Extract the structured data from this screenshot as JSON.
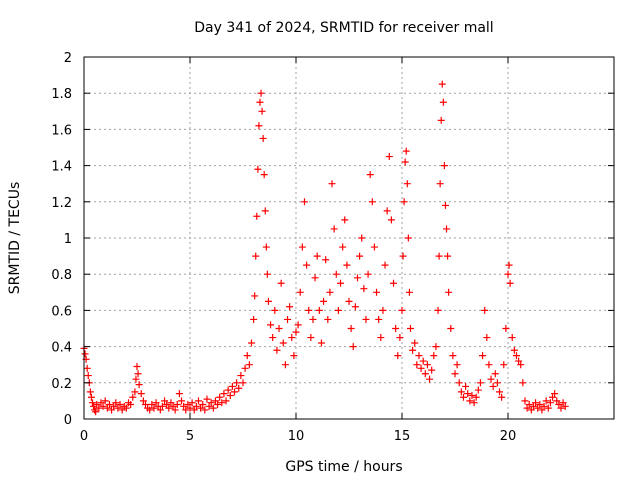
{
  "chart_data": {
    "type": "scatter",
    "title": "Day 341 of 2024, SRMTID for receiver mall",
    "xlabel": "GPS time / hours",
    "ylabel": "SRMTID / TECUs",
    "xlim": [
      0,
      25
    ],
    "ylim": [
      0,
      2
    ],
    "x_ticks": [
      0,
      5,
      10,
      15,
      20
    ],
    "x_tick_labels": [
      "0",
      "5",
      "10",
      "15",
      "20"
    ],
    "y_ticks": [
      0,
      0.2,
      0.4,
      0.6,
      0.8,
      1,
      1.2,
      1.4,
      1.6,
      1.8,
      2
    ],
    "y_tick_labels": [
      "0",
      "0.2",
      "0.4",
      "0.6",
      "0.8",
      "1",
      "1.2",
      "1.4",
      "1.6",
      "1.8",
      "2"
    ],
    "grid": true,
    "marker": "+",
    "series": [
      {
        "name": "SRMTID",
        "color": "#ff0000",
        "points": [
          [
            0.0,
            0.39
          ],
          [
            0.05,
            0.36
          ],
          [
            0.1,
            0.33
          ],
          [
            0.15,
            0.28
          ],
          [
            0.2,
            0.24
          ],
          [
            0.25,
            0.2
          ],
          [
            0.3,
            0.15
          ],
          [
            0.35,
            0.12
          ],
          [
            0.4,
            0.09
          ],
          [
            0.45,
            0.07
          ],
          [
            0.5,
            0.05
          ],
          [
            0.55,
            0.04
          ],
          [
            0.6,
            0.08
          ],
          [
            0.7,
            0.06
          ],
          [
            0.8,
            0.09
          ],
          [
            0.9,
            0.07
          ],
          [
            1.0,
            0.1
          ],
          [
            1.1,
            0.06
          ],
          [
            1.2,
            0.08
          ],
          [
            1.3,
            0.05
          ],
          [
            1.4,
            0.07
          ],
          [
            1.5,
            0.09
          ],
          [
            1.6,
            0.06
          ],
          [
            1.7,
            0.08
          ],
          [
            1.8,
            0.05
          ],
          [
            1.9,
            0.07
          ],
          [
            2.0,
            0.06
          ],
          [
            2.1,
            0.09
          ],
          [
            2.2,
            0.08
          ],
          [
            2.3,
            0.12
          ],
          [
            2.4,
            0.15
          ],
          [
            2.45,
            0.22
          ],
          [
            2.5,
            0.29
          ],
          [
            2.55,
            0.25
          ],
          [
            2.6,
            0.19
          ],
          [
            2.7,
            0.14
          ],
          [
            2.8,
            0.1
          ],
          [
            2.9,
            0.08
          ],
          [
            3.0,
            0.06
          ],
          [
            3.1,
            0.05
          ],
          [
            3.2,
            0.08
          ],
          [
            3.3,
            0.06
          ],
          [
            3.4,
            0.09
          ],
          [
            3.5,
            0.07
          ],
          [
            3.6,
            0.05
          ],
          [
            3.7,
            0.07
          ],
          [
            3.8,
            0.1
          ],
          [
            3.9,
            0.08
          ],
          [
            4.0,
            0.06
          ],
          [
            4.1,
            0.09
          ],
          [
            4.2,
            0.07
          ],
          [
            4.3,
            0.05
          ],
          [
            4.4,
            0.08
          ],
          [
            4.5,
            0.14
          ],
          [
            4.6,
            0.1
          ],
          [
            4.7,
            0.07
          ],
          [
            4.8,
            0.05
          ],
          [
            4.9,
            0.08
          ],
          [
            5.0,
            0.06
          ],
          [
            5.1,
            0.09
          ],
          [
            5.2,
            0.05
          ],
          [
            5.3,
            0.07
          ],
          [
            5.4,
            0.1
          ],
          [
            5.5,
            0.06
          ],
          [
            5.6,
            0.08
          ],
          [
            5.7,
            0.05
          ],
          [
            5.8,
            0.11
          ],
          [
            5.9,
            0.07
          ],
          [
            6.0,
            0.09
          ],
          [
            6.1,
            0.06
          ],
          [
            6.2,
            0.1
          ],
          [
            6.3,
            0.08
          ],
          [
            6.4,
            0.12
          ],
          [
            6.5,
            0.09
          ],
          [
            6.6,
            0.14
          ],
          [
            6.7,
            0.1
          ],
          [
            6.8,
            0.16
          ],
          [
            6.9,
            0.13
          ],
          [
            7.0,
            0.18
          ],
          [
            7.1,
            0.15
          ],
          [
            7.2,
            0.2
          ],
          [
            7.3,
            0.17
          ],
          [
            7.4,
            0.24
          ],
          [
            7.5,
            0.2
          ],
          [
            7.6,
            0.28
          ],
          [
            7.7,
            0.35
          ],
          [
            7.8,
            0.3
          ],
          [
            7.9,
            0.42
          ],
          [
            8.0,
            0.55
          ],
          [
            8.05,
            0.68
          ],
          [
            8.1,
            0.9
          ],
          [
            8.15,
            1.12
          ],
          [
            8.2,
            1.38
          ],
          [
            8.25,
            1.62
          ],
          [
            8.3,
            1.75
          ],
          [
            8.35,
            1.8
          ],
          [
            8.4,
            1.7
          ],
          [
            8.45,
            1.55
          ],
          [
            8.5,
            1.35
          ],
          [
            8.55,
            1.15
          ],
          [
            8.6,
            0.95
          ],
          [
            8.65,
            0.8
          ],
          [
            8.7,
            0.65
          ],
          [
            8.8,
            0.52
          ],
          [
            8.9,
            0.45
          ],
          [
            9.0,
            0.6
          ],
          [
            9.1,
            0.38
          ],
          [
            9.2,
            0.5
          ],
          [
            9.3,
            0.75
          ],
          [
            9.4,
            0.42
          ],
          [
            9.5,
            0.3
          ],
          [
            9.6,
            0.55
          ],
          [
            9.7,
            0.62
          ],
          [
            9.8,
            0.45
          ],
          [
            9.9,
            0.35
          ],
          [
            10.0,
            0.48
          ],
          [
            10.1,
            0.52
          ],
          [
            10.2,
            0.7
          ],
          [
            10.3,
            0.95
          ],
          [
            10.4,
            1.2
          ],
          [
            10.5,
            0.85
          ],
          [
            10.6,
            0.6
          ],
          [
            10.7,
            0.45
          ],
          [
            10.8,
            0.55
          ],
          [
            10.9,
            0.78
          ],
          [
            11.0,
            0.9
          ],
          [
            11.1,
            0.6
          ],
          [
            11.2,
            0.42
          ],
          [
            11.3,
            0.65
          ],
          [
            11.4,
            0.88
          ],
          [
            11.5,
            0.55
          ],
          [
            11.6,
            0.7
          ],
          [
            11.7,
            1.3
          ],
          [
            11.8,
            1.05
          ],
          [
            11.9,
            0.8
          ],
          [
            12.0,
            0.6
          ],
          [
            12.1,
            0.75
          ],
          [
            12.2,
            0.95
          ],
          [
            12.3,
            1.1
          ],
          [
            12.4,
            0.85
          ],
          [
            12.5,
            0.65
          ],
          [
            12.6,
            0.5
          ],
          [
            12.7,
            0.4
          ],
          [
            12.8,
            0.62
          ],
          [
            12.9,
            0.78
          ],
          [
            13.0,
            0.9
          ],
          [
            13.1,
            1.0
          ],
          [
            13.2,
            0.72
          ],
          [
            13.3,
            0.55
          ],
          [
            13.4,
            0.8
          ],
          [
            13.5,
            1.35
          ],
          [
            13.6,
            1.2
          ],
          [
            13.7,
            0.95
          ],
          [
            13.8,
            0.7
          ],
          [
            13.9,
            0.55
          ],
          [
            14.0,
            0.45
          ],
          [
            14.1,
            0.6
          ],
          [
            14.2,
            0.85
          ],
          [
            14.3,
            1.15
          ],
          [
            14.4,
            1.45
          ],
          [
            14.5,
            1.1
          ],
          [
            14.6,
            0.75
          ],
          [
            14.7,
            0.5
          ],
          [
            14.8,
            0.35
          ],
          [
            14.9,
            0.45
          ],
          [
            15.0,
            0.6
          ],
          [
            15.05,
            0.9
          ],
          [
            15.1,
            1.2
          ],
          [
            15.15,
            1.42
          ],
          [
            15.2,
            1.48
          ],
          [
            15.25,
            1.3
          ],
          [
            15.3,
            1.0
          ],
          [
            15.35,
            0.7
          ],
          [
            15.4,
            0.5
          ],
          [
            15.5,
            0.38
          ],
          [
            15.6,
            0.42
          ],
          [
            15.7,
            0.3
          ],
          [
            15.8,
            0.35
          ],
          [
            15.9,
            0.28
          ],
          [
            16.0,
            0.32
          ],
          [
            16.1,
            0.25
          ],
          [
            16.2,
            0.3
          ],
          [
            16.3,
            0.22
          ],
          [
            16.4,
            0.27
          ],
          [
            16.5,
            0.35
          ],
          [
            16.6,
            0.4
          ],
          [
            16.7,
            0.6
          ],
          [
            16.75,
            0.9
          ],
          [
            16.8,
            1.3
          ],
          [
            16.85,
            1.65
          ],
          [
            16.9,
            1.85
          ],
          [
            16.95,
            1.75
          ],
          [
            17.0,
            1.4
          ],
          [
            17.05,
            1.18
          ],
          [
            17.1,
            1.05
          ],
          [
            17.15,
            0.9
          ],
          [
            17.2,
            0.7
          ],
          [
            17.3,
            0.5
          ],
          [
            17.4,
            0.35
          ],
          [
            17.5,
            0.25
          ],
          [
            17.6,
            0.3
          ],
          [
            17.7,
            0.2
          ],
          [
            17.8,
            0.15
          ],
          [
            17.9,
            0.12
          ],
          [
            18.0,
            0.18
          ],
          [
            18.1,
            0.14
          ],
          [
            18.2,
            0.1
          ],
          [
            18.3,
            0.13
          ],
          [
            18.4,
            0.09
          ],
          [
            18.5,
            0.12
          ],
          [
            18.6,
            0.16
          ],
          [
            18.7,
            0.2
          ],
          [
            18.8,
            0.35
          ],
          [
            18.9,
            0.6
          ],
          [
            19.0,
            0.45
          ],
          [
            19.1,
            0.3
          ],
          [
            19.2,
            0.22
          ],
          [
            19.3,
            0.18
          ],
          [
            19.4,
            0.25
          ],
          [
            19.5,
            0.2
          ],
          [
            19.6,
            0.15
          ],
          [
            19.7,
            0.12
          ],
          [
            19.8,
            0.3
          ],
          [
            19.9,
            0.5
          ],
          [
            20.0,
            0.8
          ],
          [
            20.05,
            0.85
          ],
          [
            20.1,
            0.75
          ],
          [
            20.2,
            0.45
          ],
          [
            20.3,
            0.38
          ],
          [
            20.4,
            0.35
          ],
          [
            20.5,
            0.32
          ],
          [
            20.6,
            0.3
          ],
          [
            20.7,
            0.2
          ],
          [
            20.8,
            0.1
          ],
          [
            20.9,
            0.06
          ],
          [
            21.0,
            0.08
          ],
          [
            21.1,
            0.05
          ],
          [
            21.2,
            0.07
          ],
          [
            21.3,
            0.09
          ],
          [
            21.4,
            0.06
          ],
          [
            21.5,
            0.08
          ],
          [
            21.6,
            0.05
          ],
          [
            21.7,
            0.07
          ],
          [
            21.8,
            0.1
          ],
          [
            21.9,
            0.06
          ],
          [
            22.0,
            0.09
          ],
          [
            22.1,
            0.12
          ],
          [
            22.2,
            0.14
          ],
          [
            22.3,
            0.1
          ],
          [
            22.4,
            0.08
          ],
          [
            22.5,
            0.06
          ],
          [
            22.6,
            0.09
          ],
          [
            22.7,
            0.07
          ]
        ]
      }
    ]
  }
}
